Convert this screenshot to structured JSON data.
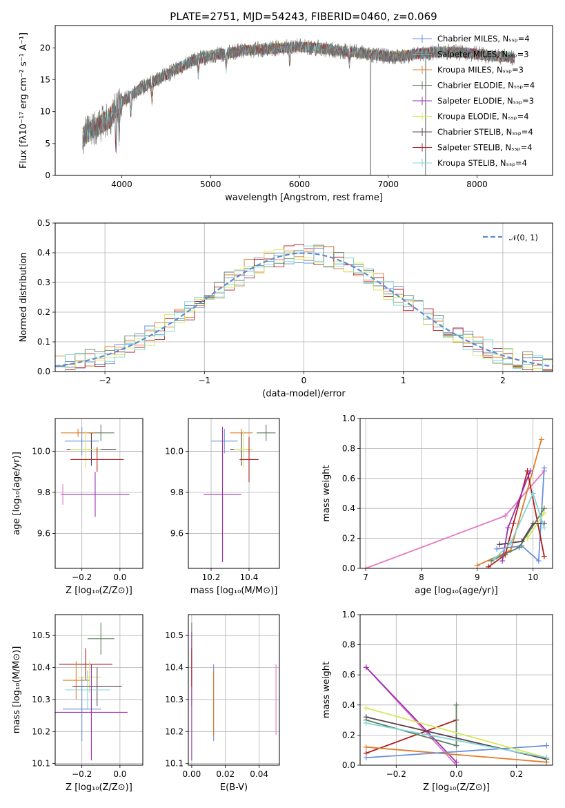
{
  "chart_data": [
    {
      "type": "line",
      "title": "PLATE=2751, MJD=54243, FIBERID=0460, z=0.069",
      "xlabel": "wavelength [Angstrom, rest frame]",
      "ylabel": "Flux [fλ10⁻¹⁷ erg cm⁻² s⁻¹ A⁻¹]",
      "xlim": [
        3250,
        8850
      ],
      "ylim": [
        0,
        23.5
      ],
      "xticks": [
        "4000",
        "5000",
        "6000",
        "7000",
        "8000"
      ],
      "yticks": [
        "0",
        "5",
        "10",
        "15",
        "20"
      ],
      "legend_position": "upper-right",
      "continuum": {
        "x": [
          3550,
          3700,
          3850,
          4000,
          4200,
          4400,
          4600,
          4800,
          5000,
          5200,
          5400,
          5600,
          5800,
          6000,
          6200,
          6400,
          6600,
          6800,
          7000,
          7200,
          7400,
          7600,
          7800,
          8000,
          8200,
          8400
        ],
        "y": [
          6.0,
          7.5,
          8.8,
          11.5,
          13.5,
          15.0,
          16.5,
          18.0,
          18.8,
          19.2,
          19.6,
          19.8,
          20.0,
          20.2,
          20.0,
          19.6,
          19.4,
          19.0,
          18.6,
          18.8,
          19.2,
          19.4,
          19.3,
          19.0,
          18.7,
          18.5
        ]
      },
      "series": [
        {
          "name": "Chabrier MILES, N_SSP=4",
          "color": "#6a8fdc"
        },
        {
          "name": "Salpeter MILES, N_SSP=3",
          "color": "#66c2c7"
        },
        {
          "name": "Kroupa MILES, N_SSP=3",
          "color": "#e07b2a"
        },
        {
          "name": "Chabrier ELODIE, N_SSP=4",
          "color": "#5b7f5b"
        },
        {
          "name": "Salpeter ELODIE, N_SSP=3",
          "color": "#9b30b0"
        },
        {
          "name": "Kroupa ELODIE, N_SSP=4",
          "color": "#d6e85a"
        },
        {
          "name": "Chabrier STELIB, N_SSP=4",
          "color": "#5a4050"
        },
        {
          "name": "Salpeter STELIB, N_SSP=4",
          "color": "#b01c1c"
        },
        {
          "name": "Kroupa STELIB, N_SSP=4",
          "color": "#7fd6d9"
        }
      ]
    },
    {
      "type": "line",
      "xlabel": "(data-model)/error",
      "ylabel": "Normed distribution",
      "xlim": [
        -2.5,
        2.5
      ],
      "ylim": [
        0,
        0.5
      ],
      "xticks": [
        "−2",
        "−1",
        "0",
        "1",
        "2"
      ],
      "yticks": [
        "0.0",
        "0.1",
        "0.2",
        "0.3",
        "0.4",
        "0.5"
      ],
      "legend_label": "𝒩(0, 1)",
      "normal_color": "#5b8ad4",
      "histogram_colors": [
        "#6a8fdc",
        "#e07b2a",
        "#5b7f5b",
        "#b01c1c",
        "#d6e85a",
        "#7fd6d9"
      ]
    },
    {
      "type": "scatter",
      "xlabel": "Z [log₁₀(Z/Z⊙)]",
      "ylabel": "age  [log₁₀(age/yr)]",
      "xlim": [
        -0.34,
        0.12
      ],
      "ylim": [
        9.43,
        10.16
      ],
      "xticks": [
        "−0.2",
        "0.0"
      ],
      "yticks": [
        "9.6",
        "9.8",
        "10.0"
      ],
      "points": [
        {
          "x": -0.1,
          "y": 10.09,
          "xerr": 0.07,
          "yerr": 0.04,
          "color": "#5b7f5b"
        },
        {
          "x": -0.22,
          "y": 10.09,
          "xerr": 0.09,
          "yerr": 0.02,
          "color": "#e07b2a"
        },
        {
          "x": -0.2,
          "y": 10.05,
          "xerr": 0.09,
          "yerr": 0.07,
          "color": "#6a8fdc"
        },
        {
          "x": -0.15,
          "y": 10.01,
          "xerr": 0.13,
          "yerr": 0.08,
          "color": "#5a4050"
        },
        {
          "x": -0.18,
          "y": 10.01,
          "xerr": 0.08,
          "yerr": 0.09,
          "color": "#d6e85a"
        },
        {
          "x": -0.12,
          "y": 9.96,
          "xerr": 0.14,
          "yerr": 0.06,
          "color": "#b01c1c"
        },
        {
          "x": -0.13,
          "y": 9.79,
          "xerr": 0.18,
          "yerr": 0.11,
          "color": "#9b30b0"
        },
        {
          "x": -0.3,
          "y": 9.79,
          "xerr": 0.0,
          "yerr": 0.05,
          "color": "#e377c2"
        }
      ]
    },
    {
      "type": "scatter",
      "xlabel": "mass [log₁₀(M/M⊙)]",
      "xlim": [
        10.08,
        10.56
      ],
      "ylim": [
        9.43,
        10.16
      ],
      "xticks": [
        "10.2",
        "10.4"
      ],
      "yticks": [
        "9.6",
        "9.8",
        "10.0"
      ],
      "points": [
        {
          "x": 10.49,
          "y": 10.09,
          "xerr": 0.05,
          "yerr": 0.04,
          "color": "#5b7f5b"
        },
        {
          "x": 10.36,
          "y": 10.09,
          "xerr": 0.06,
          "yerr": 0.02,
          "color": "#e07b2a"
        },
        {
          "x": 10.27,
          "y": 10.05,
          "xerr": 0.07,
          "yerr": 0.06,
          "color": "#6a8fdc"
        },
        {
          "x": 10.36,
          "y": 10.01,
          "xerr": 0.06,
          "yerr": 0.08,
          "color": "#5a4050"
        },
        {
          "x": 10.37,
          "y": 10.01,
          "xerr": 0.05,
          "yerr": 0.09,
          "color": "#d6e85a"
        },
        {
          "x": 10.4,
          "y": 9.96,
          "xerr": 0.05,
          "yerr": 0.11,
          "color": "#b01c1c"
        },
        {
          "x": 10.26,
          "y": 9.79,
          "xerr": 0.1,
          "yerr": 0.33,
          "color": "#9b30b0"
        }
      ]
    },
    {
      "type": "line",
      "xlabel": "age  [log₁₀(age/yr)]",
      "ylabel": "mass weight",
      "xlim": [
        6.9,
        10.35
      ],
      "ylim": [
        0,
        1.0
      ],
      "xticks": [
        "7",
        "8",
        "9",
        "10"
      ],
      "yticks": [
        "0.0",
        "0.2",
        "0.4",
        "0.6",
        "0.8",
        "1.0"
      ],
      "series": [
        {
          "color": "#e377c2",
          "x": [
            7.0,
            9.5,
            10.2
          ],
          "y": [
            0.0,
            0.35,
            0.65
          ]
        },
        {
          "color": "#e07b2a",
          "x": [
            9.0,
            9.6,
            10.15
          ],
          "y": [
            0.02,
            0.12,
            0.86
          ]
        },
        {
          "color": "#6a8fdc",
          "x": [
            9.35,
            9.8,
            10.1,
            10.2
          ],
          "y": [
            0.13,
            0.15,
            0.05,
            0.67
          ]
        },
        {
          "color": "#b01c1c",
          "x": [
            9.2,
            9.5,
            9.65,
            9.9,
            10.2
          ],
          "y": [
            0.01,
            0.09,
            0.3,
            0.65,
            0.08
          ]
        },
        {
          "color": "#9b30b0",
          "x": [
            9.45,
            9.55,
            9.95
          ],
          "y": [
            0.05,
            0.27,
            0.65
          ]
        },
        {
          "color": "#5b7f5b",
          "x": [
            9.25,
            9.75,
            10.2
          ],
          "y": [
            0.05,
            0.14,
            0.4
          ]
        },
        {
          "color": "#d6e85a",
          "x": [
            9.9,
            10.2
          ],
          "y": [
            0.2,
            0.37
          ]
        },
        {
          "color": "#5a4050",
          "x": [
            9.4,
            9.8,
            10.0,
            10.2
          ],
          "y": [
            0.16,
            0.18,
            0.3,
            0.3
          ]
        },
        {
          "color": "#7fd6d9",
          "x": [
            9.3,
            9.6,
            10.0,
            10.2
          ],
          "y": [
            0.06,
            0.17,
            0.5,
            0.27
          ]
        }
      ]
    },
    {
      "type": "scatter",
      "xlabel": "Z [log₁₀(Z/Z⊙)]",
      "ylabel": "mass [log₁₀(M/M⊙)]",
      "xlim": [
        -0.34,
        0.12
      ],
      "ylim": [
        10.095,
        10.565
      ],
      "xticks": [
        "−0.2",
        "0.0"
      ],
      "yticks": [
        "10.1",
        "10.2",
        "10.3",
        "10.4",
        "10.5"
      ],
      "points": [
        {
          "x": -0.1,
          "y": 10.49,
          "xerr": 0.07,
          "yerr": 0.05,
          "color": "#5b7f5b"
        },
        {
          "x": -0.18,
          "y": 10.41,
          "xerr": 0.14,
          "yerr": 0.05,
          "color": "#b01c1c"
        },
        {
          "x": -0.16,
          "y": 10.37,
          "xerr": 0.06,
          "yerr": 0.05,
          "color": "#d6e85a"
        },
        {
          "x": -0.23,
          "y": 10.36,
          "xerr": 0.07,
          "yerr": 0.06,
          "color": "#e07b2a"
        },
        {
          "x": -0.12,
          "y": 10.34,
          "xerr": 0.13,
          "yerr": 0.06,
          "color": "#5a4050"
        },
        {
          "x": -0.17,
          "y": 10.33,
          "xerr": 0.12,
          "yerr": 0.06,
          "color": "#7fd6d9"
        },
        {
          "x": -0.2,
          "y": 10.27,
          "xerr": 0.1,
          "yerr": 0.1,
          "color": "#6a8fdc"
        },
        {
          "x": -0.15,
          "y": 10.26,
          "xerr": 0.19,
          "yerr": 0.15,
          "color": "#9b30b0"
        }
      ]
    },
    {
      "type": "scatter",
      "xlabel": "E(B-V)",
      "xlim": [
        -0.002,
        0.052
      ],
      "ylim": [
        10.095,
        10.565
      ],
      "xticks": [
        "0.00",
        "0.02",
        "0.04"
      ],
      "yticks": [
        "10.1",
        "10.2",
        "10.3",
        "10.4",
        "10.5"
      ],
      "points": [
        {
          "x": 0.0,
          "y": 10.41,
          "xerr": 0,
          "yerr": 0.13,
          "color": "#5b7f5b"
        },
        {
          "x": 0.0,
          "y": 10.31,
          "xerr": 0,
          "yerr": 0.2,
          "color": "#9b30b0"
        },
        {
          "x": 0.0,
          "y": 10.4,
          "xerr": 0,
          "yerr": 0.06,
          "color": "#b01c1c"
        },
        {
          "x": 0.013,
          "y": 10.29,
          "xerr": 0,
          "yerr": 0.12,
          "color": "#6a8fdc"
        },
        {
          "x": 0.013,
          "y": 10.29,
          "xerr": 0,
          "yerr": 0.1,
          "color": "#e07b2a"
        },
        {
          "x": 0.05,
          "y": 10.3,
          "xerr": 0,
          "yerr": 0.11,
          "color": "#e377c2"
        }
      ]
    },
    {
      "type": "line",
      "xlabel": "Z [log₁₀(Z/Z⊙)]",
      "ylabel": "mass weight",
      "xlim": [
        -0.32,
        0.32
      ],
      "ylim": [
        0,
        1.0
      ],
      "xticks": [
        "−0.2",
        "0.0",
        "0.2"
      ],
      "yticks": [
        "0.0",
        "0.2",
        "0.4",
        "0.6",
        "0.8",
        "1.0"
      ],
      "series": [
        {
          "color": "#e377c2",
          "x": [
            -0.3,
            0.0
          ],
          "y": [
            0.65,
            0.0
          ]
        },
        {
          "color": "#9b30b0",
          "x": [
            -0.3,
            0.0
          ],
          "y": [
            0.65,
            0.02
          ]
        },
        {
          "color": "#b01c1c",
          "x": [
            -0.3,
            0.0
          ],
          "y": [
            0.08,
            0.3
          ]
        },
        {
          "color": "#e07b2a",
          "x": [
            -0.3,
            0.3
          ],
          "y": [
            0.12,
            0.02
          ]
        },
        {
          "color": "#6a8fdc",
          "x": [
            -0.3,
            0.3
          ],
          "y": [
            0.05,
            0.13
          ]
        },
        {
          "color": "#5b7f5b",
          "x": [
            -0.3,
            0.0,
            0.0
          ],
          "y": [
            0.3,
            0.13,
            0.4
          ]
        },
        {
          "color": "#d6e85a",
          "x": [
            -0.3,
            0.3
          ],
          "y": [
            0.38,
            0.05
          ]
        },
        {
          "color": "#5a4050",
          "x": [
            -0.3,
            0.3
          ],
          "y": [
            0.32,
            0.04
          ]
        },
        {
          "color": "#7fd6d9",
          "x": [
            -0.3,
            0.3
          ],
          "y": [
            0.28,
            0.05
          ]
        }
      ]
    }
  ]
}
